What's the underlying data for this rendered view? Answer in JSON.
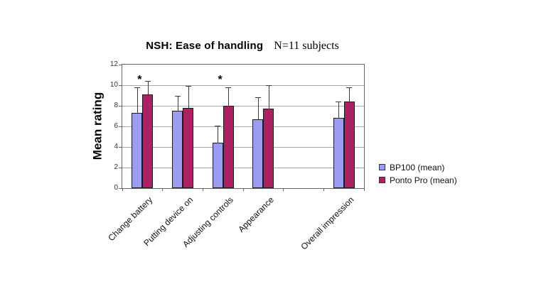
{
  "chart_data": {
    "type": "bar",
    "title": "NSH: Ease of handling",
    "subtitle": "N=11 subjects",
    "ylabel": "Mean rating",
    "xlabel": "",
    "categories": [
      "Change battery",
      "Putting device on",
      "Adjusting controls",
      "Appearance",
      "",
      "Overall impression"
    ],
    "series": [
      {
        "name": "BP100 (mean)",
        "color": "#9c9cf0",
        "values": [
          7.3,
          7.5,
          4.4,
          6.7,
          null,
          6.8
        ],
        "error_up": [
          2.5,
          1.5,
          1.7,
          2.1,
          null,
          1.6
        ]
      },
      {
        "name": "Ponto Pro (mean)",
        "color": "#ac2162",
        "values": [
          9.1,
          7.8,
          8.0,
          7.7,
          null,
          8.4
        ],
        "error_up": [
          1.3,
          2.1,
          1.8,
          2.3,
          null,
          1.4
        ]
      }
    ],
    "significance_markers": [
      {
        "category_index": 0,
        "symbol": "*"
      },
      {
        "category_index": 2,
        "symbol": "*"
      }
    ],
    "ylim": [
      0,
      12
    ],
    "yticks": [
      0,
      2,
      4,
      6,
      8,
      10,
      12
    ],
    "grid": true,
    "legend_position": "right",
    "legend": [
      {
        "label": "BP100 (mean)",
        "swatch_color": "#9c9cf0"
      },
      {
        "label": "Ponto Pro (mean)",
        "swatch_color": "#ac2162"
      }
    ]
  }
}
